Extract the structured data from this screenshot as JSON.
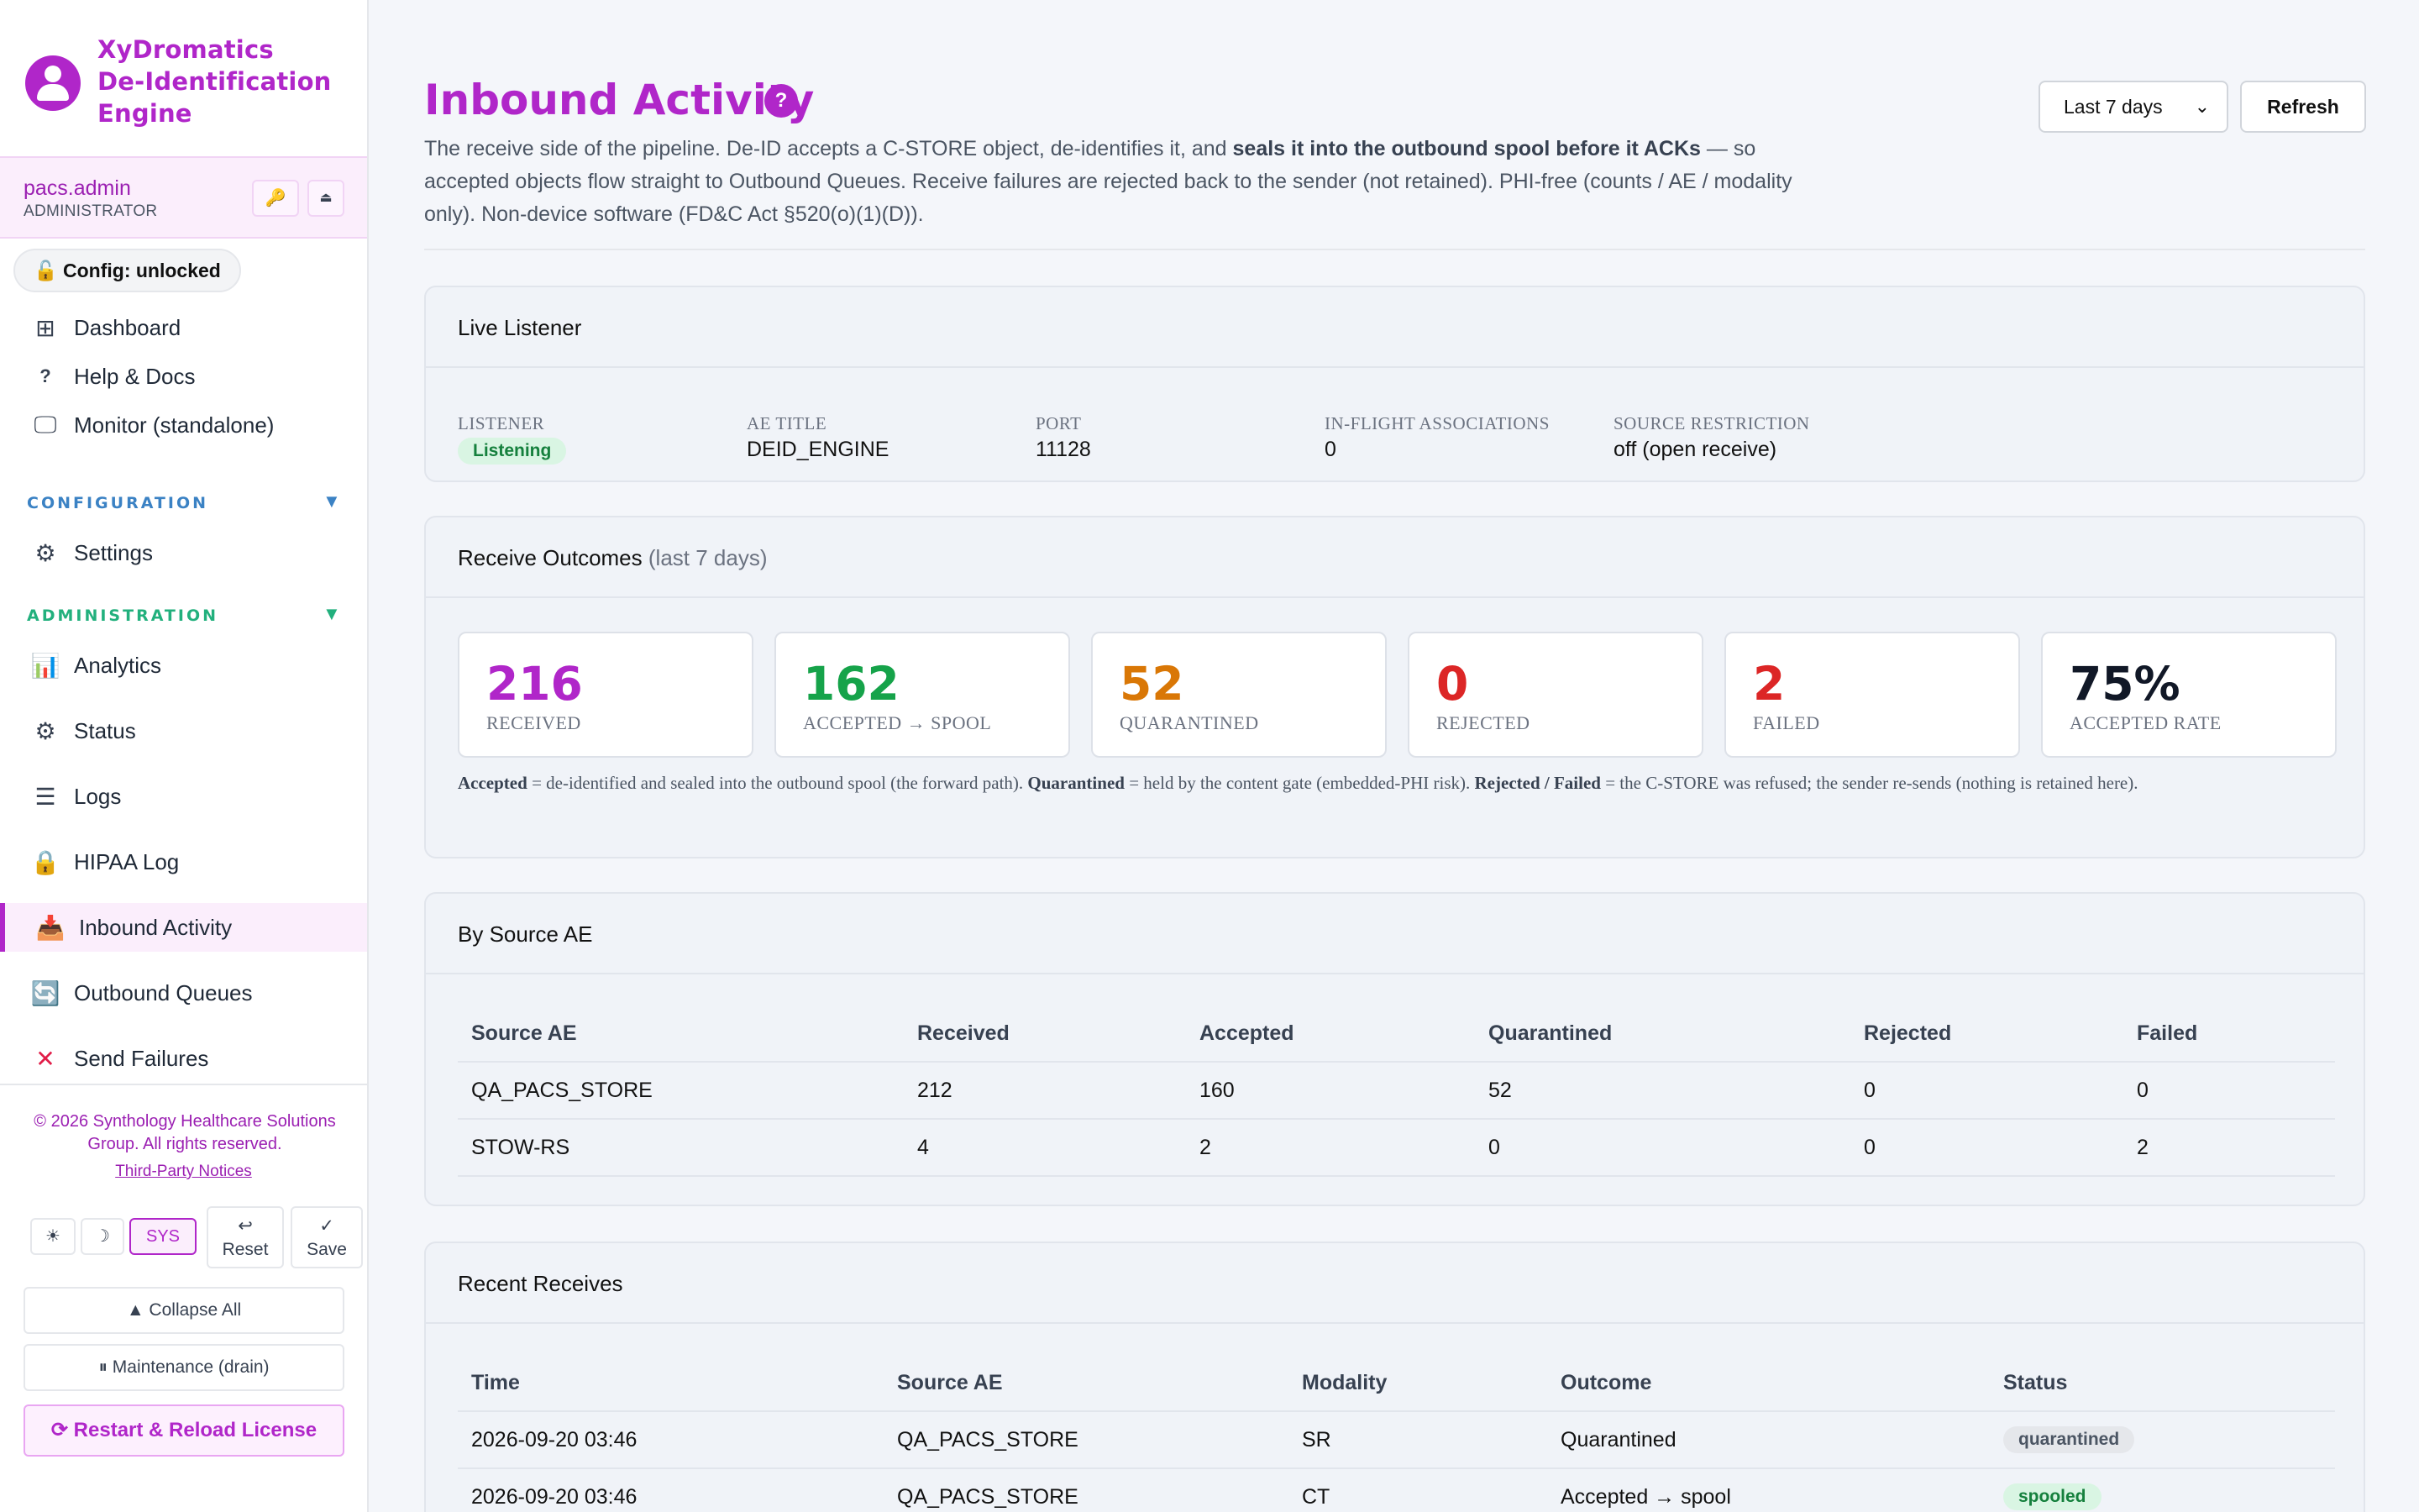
{
  "app": {
    "brand_line1": "XyDromatics",
    "brand_line2": "De-Identification",
    "brand_line3": "Engine"
  },
  "user": {
    "name": "pacs.admin",
    "role": "ADMINISTRATOR",
    "key_icon": "🔑",
    "eject_icon": "⏏"
  },
  "config_pill": "🔓 Config: unlocked",
  "nav_top": [
    {
      "icon": "dashboard-icon",
      "glyph": "⊞",
      "label": "Dashboard"
    },
    {
      "icon": "help-icon",
      "glyph": "?",
      "label": "Help & Docs"
    },
    {
      "icon": "monitor-icon",
      "glyph": "🖵",
      "label": "Monitor (standalone)"
    }
  ],
  "sections": {
    "configuration": {
      "label": "CONFIGURATION",
      "color": "#3b82c4",
      "arrow": "▼"
    },
    "administration": {
      "label": "ADMINISTRATION",
      "color": "#22b07d",
      "arrow": "▼"
    }
  },
  "nav_config": [
    {
      "icon": "gear-icon",
      "glyph": "⚙",
      "label": "Settings"
    }
  ],
  "nav_admin": [
    {
      "icon": "analytics-icon",
      "glyph": "📊",
      "label": "Analytics"
    },
    {
      "icon": "chip-icon",
      "glyph": "⚙",
      "label": "Status"
    },
    {
      "icon": "list-icon",
      "glyph": "☰",
      "label": "Logs"
    },
    {
      "icon": "lock-icon",
      "glyph": "🔒",
      "label": "HIPAA Log"
    },
    {
      "icon": "inbox-icon",
      "glyph": "📥",
      "label": "Inbound Activity"
    },
    {
      "icon": "refresh-box-icon",
      "glyph": "🔄",
      "label": "Outbound Queues"
    },
    {
      "icon": "x-icon",
      "glyph": "✕",
      "label": "Send Failures"
    }
  ],
  "footer": {
    "copyright": "© 2026 Synthology Healthcare Solutions Group. All rights reserved.",
    "third_party": "Third-Party Notices",
    "theme_light": "☀",
    "theme_dark": "☽",
    "theme_sys": "SYS",
    "reset_icon": "↩",
    "reset": "Reset",
    "save_icon": "✓",
    "save": "Save",
    "collapse_all": "▲ Collapse All",
    "maintenance": "⏸ Maintenance (drain)",
    "restart": "⟳ Restart & Reload License"
  },
  "page": {
    "title": "Inbound Activity",
    "help": "?",
    "desc_1": "The receive side of the pipeline. De-ID accepts a C-STORE object, de-identifies it, and ",
    "desc_bold": "seals it into the outbound spool before it ACKs",
    "desc_2": " — so accepted objects flow straight to Outbound Queues. Receive failures are rejected back to the sender (not retained). PHI-free (counts / AE / modality only). Non-device software (FD&C Act §520(o)(1)(D)).",
    "range": "Last 7 days",
    "refresh": "Refresh"
  },
  "listener": {
    "title": "Live Listener",
    "fields": [
      {
        "key": "LISTENER",
        "value": "Listening",
        "badge": true
      },
      {
        "key": "AE TITLE",
        "value": "DEID_ENGINE"
      },
      {
        "key": "PORT",
        "value": "11128"
      },
      {
        "key": "IN-FLIGHT ASSOCIATIONS",
        "value": "0"
      },
      {
        "key": "SOURCE RESTRICTION",
        "value": "off (open receive)"
      }
    ]
  },
  "outcomes": {
    "title": "Receive Outcomes",
    "subtitle": "(last 7 days)",
    "stats": [
      {
        "value": "216",
        "label": "RECEIVED",
        "color": "#b026c9"
      },
      {
        "value": "162",
        "label": "ACCEPTED → SPOOL",
        "color": "#16a34a"
      },
      {
        "value": "52",
        "label": "QUARANTINED",
        "color": "#d97706"
      },
      {
        "value": "0",
        "label": "REJECTED",
        "color": "#dc2626"
      },
      {
        "value": "2",
        "label": "FAILED",
        "color": "#dc2626"
      },
      {
        "value": "75%",
        "label": "ACCEPTED RATE",
        "color": "#111827"
      }
    ],
    "note_b1": "Accepted",
    "note_t1": " = de-identified and sealed into the outbound spool (the forward path). ",
    "note_b2": "Quarantined",
    "note_t2": " = held by the content gate (embedded-PHI risk). ",
    "note_b3": "Rejected / Failed",
    "note_t3": " = the C-STORE was refused; the sender re-sends (nothing is retained here)."
  },
  "by_source": {
    "title": "By Source AE",
    "columns": [
      "Source AE",
      "Received",
      "Accepted",
      "Quarantined",
      "Rejected",
      "Failed"
    ],
    "rows": [
      [
        "QA_PACS_STORE",
        "212",
        "160",
        "52",
        "0",
        "0"
      ],
      [
        "STOW-RS",
        "4",
        "2",
        "0",
        "0",
        "2"
      ]
    ]
  },
  "recent": {
    "title": "Recent Receives",
    "columns": [
      "Time",
      "Source AE",
      "Modality",
      "Outcome",
      "Status"
    ],
    "rows": [
      [
        "2026-09-20 03:46",
        "QA_PACS_STORE",
        "SR",
        "Quarantined",
        "quarantined"
      ],
      [
        "2026-09-20 03:46",
        "QA_PACS_STORE",
        "CT",
        "Accepted → spool",
        "spooled"
      ]
    ]
  }
}
